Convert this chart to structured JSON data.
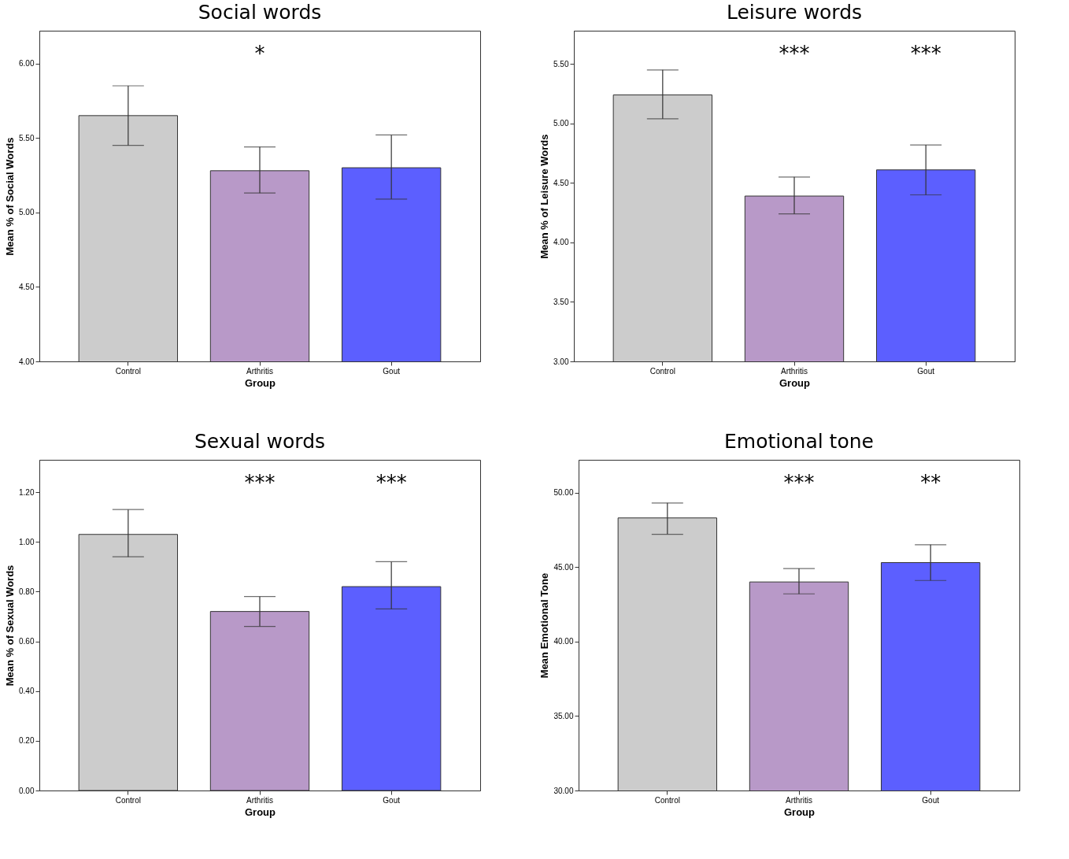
{
  "chart_data": [
    {
      "type": "bar",
      "title": "Social words",
      "xlabel": "Group",
      "ylabel": "Mean % of Social Words",
      "categories": [
        "Control",
        "Arthritis",
        "Gout"
      ],
      "values": [
        5.65,
        5.28,
        5.3
      ],
      "colors": [
        "#cccccc",
        "#b899c8",
        "#5c5fff"
      ],
      "errors": [
        [
          5.45,
          5.85
        ],
        [
          5.13,
          5.44
        ],
        [
          5.09,
          5.52
        ]
      ],
      "ylim": [
        4,
        6.22
      ],
      "yticks": [
        {
          "value": 4,
          "label": "4.00"
        },
        {
          "value": 4.5,
          "label": "4.50"
        },
        {
          "value": 5,
          "label": "5.00"
        },
        {
          "value": 5.5,
          "label": "5.50"
        },
        {
          "value": 6,
          "label": "6.00"
        }
      ],
      "annotations": [
        "*"
      ]
    },
    {
      "type": "bar",
      "title": "Leisure words",
      "xlabel": "Group",
      "ylabel": "Mean % of Leisure Words",
      "categories": [
        "Control",
        "Arthritis",
        "Gout"
      ],
      "values": [
        5.24,
        4.39,
        4.61
      ],
      "colors": [
        "#cccccc",
        "#b899c8",
        "#5c5fff"
      ],
      "errors": [
        [
          5.04,
          5.45
        ],
        [
          4.24,
          4.55
        ],
        [
          4.4,
          4.82
        ]
      ],
      "ylim": [
        3,
        5.78
      ],
      "yticks": [
        {
          "value": 3,
          "label": "3.00"
        },
        {
          "value": 3.5,
          "label": "3.50"
        },
        {
          "value": 4,
          "label": "4.00"
        },
        {
          "value": 4.5,
          "label": "4.50"
        },
        {
          "value": 5,
          "label": "5.00"
        },
        {
          "value": 5.5,
          "label": "5.50"
        }
      ],
      "annotations": [
        "***",
        "***"
      ]
    },
    {
      "type": "bar",
      "title": "Sexual words",
      "xlabel": "Group",
      "ylabel": "Mean % of Sexual Words",
      "categories": [
        "Control",
        "Arthritis",
        "Gout"
      ],
      "values": [
        1.03,
        0.72,
        0.82
      ],
      "colors": [
        "#cccccc",
        "#b899c8",
        "#5c5fff"
      ],
      "errors": [
        [
          0.94,
          1.13
        ],
        [
          0.66,
          0.78
        ],
        [
          0.73,
          0.92
        ]
      ],
      "ylim": [
        0,
        1.33
      ],
      "yticks": [
        {
          "value": 0,
          "label": "0.00"
        },
        {
          "value": 0.2,
          "label": "0.20"
        },
        {
          "value": 0.4,
          "label": "0.40"
        },
        {
          "value": 0.6,
          "label": "0.60"
        },
        {
          "value": 0.8,
          "label": "0.80"
        },
        {
          "value": 1,
          "label": "1.00"
        },
        {
          "value": 1.2,
          "label": "1.20"
        }
      ],
      "annotations": [
        "***",
        "***"
      ]
    },
    {
      "type": "bar",
      "title": "Emotional tone",
      "xlabel": "Group",
      "ylabel": "Mean Emotional Tone",
      "categories": [
        "Control",
        "Arthritis",
        "Gout"
      ],
      "values": [
        48.3,
        44.0,
        45.3
      ],
      "colors": [
        "#cccccc",
        "#b899c8",
        "#5c5fff"
      ],
      "errors": [
        [
          47.2,
          49.3
        ],
        [
          43.2,
          44.9
        ],
        [
          44.1,
          46.5
        ]
      ],
      "ylim": [
        30,
        52.2
      ],
      "yticks": [
        {
          "value": 30,
          "label": "30.00"
        },
        {
          "value": 35,
          "label": "35.00"
        },
        {
          "value": 40,
          "label": "40.00"
        },
        {
          "value": 45,
          "label": "45.00"
        },
        {
          "value": 50,
          "label": "50.00"
        }
      ],
      "annotations": [
        "***",
        "**"
      ]
    }
  ]
}
